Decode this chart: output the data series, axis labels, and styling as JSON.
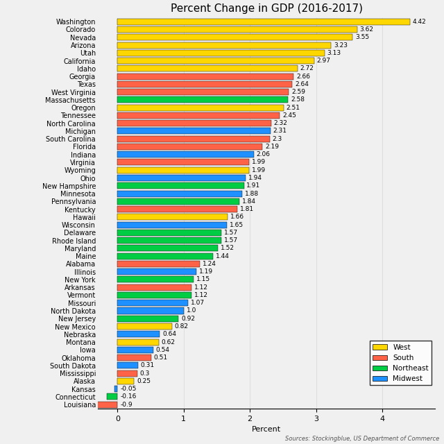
{
  "title": "Percent Change in GDP (2016-2017)",
  "xlabel": "Percent",
  "source": "Sources: Stockingblue, US Department of Commerce",
  "states": [
    "Washington",
    "Colorado",
    "Nevada",
    "Arizona",
    "Utah",
    "California",
    "Idaho",
    "Georgia",
    "Texas",
    "West Virginia",
    "Massachusetts",
    "Oregon",
    "Tennessee",
    "North Carolina",
    "Michigan",
    "South Carolina",
    "Florida",
    "Indiana",
    "Virginia",
    "Wyoming",
    "Ohio",
    "New Hampshire",
    "Minnesota",
    "Pennsylvania",
    "Kentucky",
    "Hawaii",
    "Wisconsin",
    "Delaware",
    "Rhode Island",
    "Maryland",
    "Maine",
    "Alabama",
    "Illinois",
    "New York",
    "Arkansas",
    "Vermont",
    "Missouri",
    "North Dakota",
    "New Jersey",
    "New Mexico",
    "Nebraska",
    "Montana",
    "Iowa",
    "Oklahoma",
    "South Dakota",
    "Mississippi",
    "Alaska",
    "Kansas",
    "Connecticut",
    "Louisiana"
  ],
  "values": [
    4.42,
    3.62,
    3.55,
    3.23,
    3.13,
    2.97,
    2.72,
    2.66,
    2.64,
    2.59,
    2.58,
    2.51,
    2.45,
    2.32,
    2.31,
    2.3,
    2.19,
    2.06,
    1.99,
    1.99,
    1.94,
    1.91,
    1.88,
    1.84,
    1.81,
    1.66,
    1.65,
    1.57,
    1.57,
    1.52,
    1.44,
    1.24,
    1.19,
    1.15,
    1.12,
    1.12,
    1.07,
    1.0,
    0.92,
    0.82,
    0.64,
    0.62,
    0.54,
    0.51,
    0.31,
    0.3,
    0.25,
    -0.05,
    -0.16,
    -0.9
  ],
  "regions": [
    "West",
    "West",
    "West",
    "West",
    "West",
    "West",
    "West",
    "South",
    "South",
    "South",
    "Northeast",
    "West",
    "South",
    "South",
    "Midwest",
    "South",
    "South",
    "Midwest",
    "South",
    "West",
    "Midwest",
    "Northeast",
    "Midwest",
    "Northeast",
    "South",
    "West",
    "Midwest",
    "Northeast",
    "Northeast",
    "Northeast",
    "Northeast",
    "South",
    "Midwest",
    "Northeast",
    "South",
    "Northeast",
    "Midwest",
    "Midwest",
    "Northeast",
    "West",
    "Midwest",
    "West",
    "Midwest",
    "South",
    "Midwest",
    "South",
    "West",
    "Midwest",
    "Northeast",
    "South"
  ],
  "region_colors": {
    "West": "#FFD700",
    "South": "#FF6347",
    "Northeast": "#00CC44",
    "Midwest": "#1E90FF"
  },
  "xlim": [
    -0.3,
    4.8
  ],
  "background_color": "#F0F0F0",
  "grid_color": "#DDDDDD",
  "title_fontsize": 11,
  "label_fontsize": 7,
  "value_fontsize": 6.5
}
